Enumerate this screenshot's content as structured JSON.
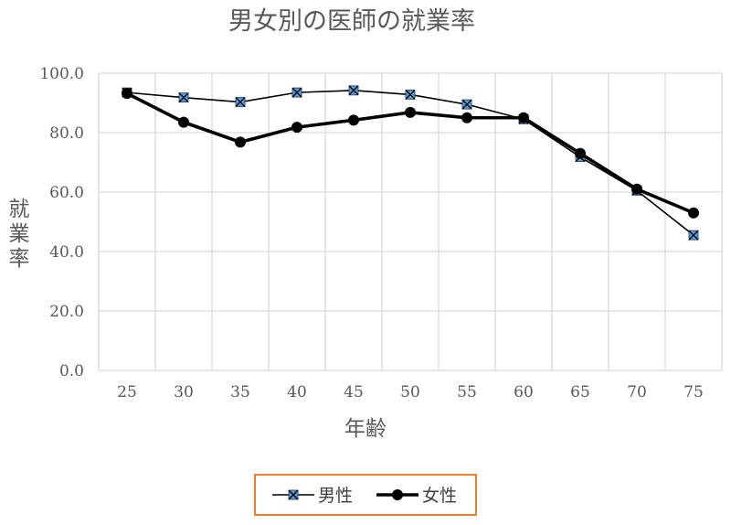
{
  "chart_data": {
    "type": "line",
    "title": "男女別の医師の就業率",
    "xlabel": "年齢",
    "ylabel": "就業率",
    "categories": [
      "25",
      "30",
      "35",
      "40",
      "45",
      "50",
      "55",
      "60",
      "65",
      "70",
      "75"
    ],
    "y_tick_labels": [
      "0.0",
      "20.0",
      "40.0",
      "60.0",
      "80.0",
      "100.0"
    ],
    "ylim": [
      0,
      100
    ],
    "grid": true,
    "legend_position": "bottom",
    "series": [
      {
        "name": "男性",
        "values": [
          93.5,
          91.8,
          90.3,
          93.5,
          94.2,
          92.8,
          89.5,
          84.5,
          71.8,
          60.5,
          45.5
        ],
        "line_color": "#000000",
        "marker_color": "#5B9BD5",
        "marker": "square-x"
      },
      {
        "name": "女性",
        "values": [
          93.2,
          83.5,
          76.8,
          81.8,
          84.2,
          86.8,
          85.0,
          85.0,
          73.0,
          61.0,
          53.0
        ],
        "line_color": "#000000",
        "marker_color": "#000000",
        "marker": "circle"
      }
    ],
    "colors": {
      "grid": "#D9D9D9",
      "axis_text": "#595959",
      "legend_border": "#ED7D31"
    }
  }
}
